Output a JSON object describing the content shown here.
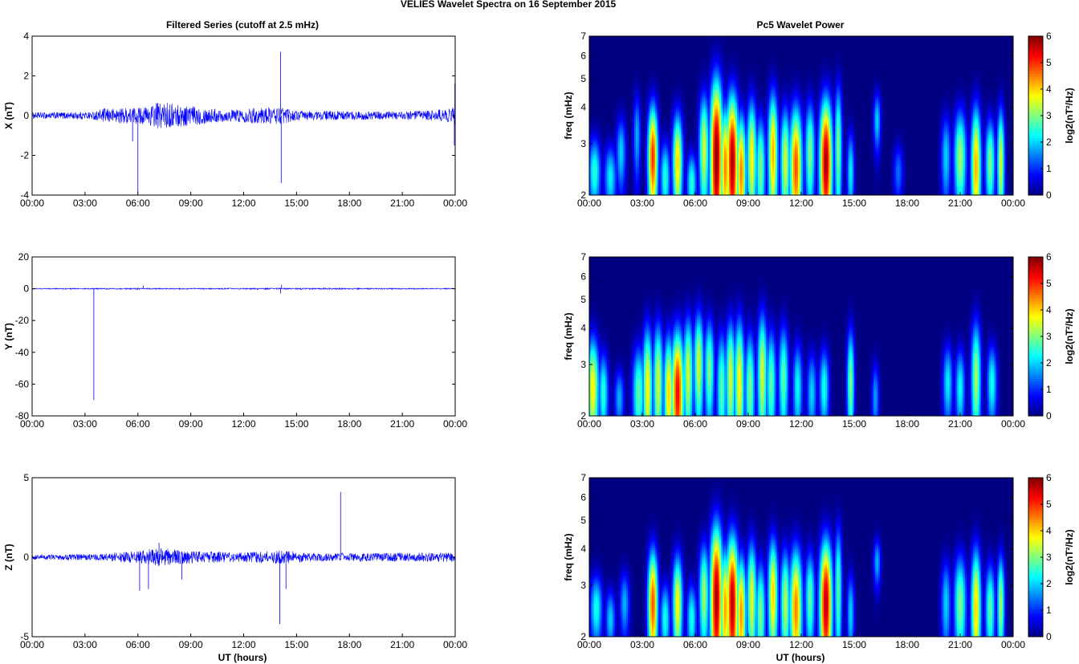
{
  "figure": {
    "title": "VELIES Wavelet Spectra on 16 September 2015",
    "left_title": "Filtered Series (cutoff at 2.5 mHz)",
    "right_title": "Pc5 Wavelet Power",
    "xlabel": "UT (hours)",
    "time_ticks": [
      "00:00",
      "03:00",
      "06:00",
      "09:00",
      "12:00",
      "15:00",
      "18:00",
      "21:00",
      "00:00"
    ],
    "series_color": "#0000ff"
  },
  "chart_data": [
    {
      "type": "line",
      "ylabel": "X (nT)",
      "xlim": [
        0,
        24
      ],
      "ylim": [
        -4,
        4
      ],
      "yticks": [
        -4,
        -2,
        0,
        2,
        4
      ],
      "noise_profile": [
        {
          "x": 0,
          "amp": 0.15
        },
        {
          "x": 3.5,
          "amp": 0.2
        },
        {
          "x": 4,
          "amp": 0.35
        },
        {
          "x": 6.5,
          "amp": 0.45
        },
        {
          "x": 7.2,
          "amp": 0.7
        },
        {
          "x": 9,
          "amp": 0.5
        },
        {
          "x": 11,
          "amp": 0.3
        },
        {
          "x": 14,
          "amp": 0.45
        },
        {
          "x": 15,
          "amp": 0.25
        },
        {
          "x": 21,
          "amp": 0.2
        },
        {
          "x": 23.8,
          "amp": 0.35
        },
        {
          "x": 24,
          "amp": 0.9
        }
      ],
      "spikes": [
        {
          "x": 5.7,
          "y": -1.3
        },
        {
          "x": 6.0,
          "y": -3.9
        },
        {
          "x": 14.1,
          "y": 3.2
        },
        {
          "x": 14.13,
          "y": -3.4
        },
        {
          "x": 23.95,
          "y": -1.5
        },
        {
          "x": 23.98,
          "y": 1.6
        }
      ]
    },
    {
      "type": "line",
      "ylabel": "Y (nT)",
      "xlim": [
        0,
        24
      ],
      "ylim": [
        -80,
        20
      ],
      "yticks": [
        -80,
        -60,
        -40,
        -20,
        0,
        20
      ],
      "noise_profile": [
        {
          "x": 0,
          "amp": 0.3
        },
        {
          "x": 6,
          "amp": 0.4
        },
        {
          "x": 9,
          "amp": 0.35
        },
        {
          "x": 14,
          "amp": 0.45
        },
        {
          "x": 24,
          "amp": 0.3
        }
      ],
      "spikes": [
        {
          "x": 3.5,
          "y": -70
        },
        {
          "x": 6.3,
          "y": 2
        },
        {
          "x": 14.1,
          "y": -3
        },
        {
          "x": 14.15,
          "y": 2.5
        }
      ]
    },
    {
      "type": "line",
      "ylabel": "Z (nT)",
      "xlim": [
        0,
        24
      ],
      "ylim": [
        -5,
        5
      ],
      "yticks": [
        -5,
        0,
        5
      ],
      "noise_profile": [
        {
          "x": 0,
          "amp": 0.15
        },
        {
          "x": 3.5,
          "amp": 0.2
        },
        {
          "x": 5.5,
          "amp": 0.35
        },
        {
          "x": 7.2,
          "amp": 0.6
        },
        {
          "x": 9,
          "amp": 0.4
        },
        {
          "x": 12,
          "amp": 0.3
        },
        {
          "x": 14,
          "amp": 0.45
        },
        {
          "x": 16,
          "amp": 0.25
        },
        {
          "x": 24,
          "amp": 0.3
        }
      ],
      "spikes": [
        {
          "x": 6.1,
          "y": -2.1
        },
        {
          "x": 6.6,
          "y": -2.0
        },
        {
          "x": 7.2,
          "y": 0.9
        },
        {
          "x": 8.5,
          "y": -1.4
        },
        {
          "x": 14.05,
          "y": -4.2
        },
        {
          "x": 14.4,
          "y": -2.0
        },
        {
          "x": 17.5,
          "y": 4.1
        },
        {
          "x": 24.0,
          "y": -0.9
        }
      ]
    },
    {
      "type": "heatmap",
      "ylabel": "freq (mHz)",
      "colorbar_label": "log2(nT²/Hz)",
      "xlim": [
        0,
        24
      ],
      "ylim": [
        2,
        7
      ],
      "yticks": [
        2,
        3,
        4,
        5,
        6,
        7
      ],
      "yscale": "log",
      "clim": [
        0,
        6
      ],
      "colorbar_ticks": [
        0,
        1,
        2,
        3,
        4,
        5,
        6
      ],
      "blobs": [
        {
          "t": 0.3,
          "f": 2.4,
          "p": 2.5,
          "w": 0.25,
          "h": 0.5
        },
        {
          "t": 1.2,
          "f": 2.3,
          "p": 2.2,
          "w": 0.25,
          "h": 0.45
        },
        {
          "t": 1.8,
          "f": 2.8,
          "p": 2.0,
          "w": 0.2,
          "h": 0.6
        },
        {
          "t": 2.7,
          "f": 3.2,
          "p": 1.8,
          "w": 0.15,
          "h": 0.8
        },
        {
          "t": 3.6,
          "f": 2.7,
          "p": 5.0,
          "w": 0.2,
          "h": 0.9
        },
        {
          "t": 4.3,
          "f": 2.3,
          "p": 2.5,
          "w": 0.2,
          "h": 0.5
        },
        {
          "t": 5.0,
          "f": 2.6,
          "p": 4.0,
          "w": 0.2,
          "h": 0.8
        },
        {
          "t": 5.8,
          "f": 2.2,
          "p": 2.5,
          "w": 0.2,
          "h": 0.4
        },
        {
          "t": 6.5,
          "f": 2.9,
          "p": 3.5,
          "w": 0.2,
          "h": 1.0
        },
        {
          "t": 7.2,
          "f": 2.7,
          "p": 6.0,
          "w": 0.25,
          "h": 1.5
        },
        {
          "t": 7.7,
          "f": 2.5,
          "p": 4.5,
          "w": 0.2,
          "h": 1.0
        },
        {
          "t": 8.1,
          "f": 2.6,
          "p": 5.8,
          "w": 0.25,
          "h": 1.2
        },
        {
          "t": 8.6,
          "f": 2.4,
          "p": 4.5,
          "w": 0.2,
          "h": 0.9
        },
        {
          "t": 9.2,
          "f": 2.7,
          "p": 3.8,
          "w": 0.2,
          "h": 1.0
        },
        {
          "t": 9.7,
          "f": 2.5,
          "p": 3.0,
          "w": 0.2,
          "h": 0.8
        },
        {
          "t": 10.4,
          "f": 2.8,
          "p": 4.2,
          "w": 0.2,
          "h": 1.1
        },
        {
          "t": 11.1,
          "f": 2.6,
          "p": 3.5,
          "w": 0.2,
          "h": 0.9
        },
        {
          "t": 11.7,
          "f": 2.5,
          "p": 4.8,
          "w": 0.25,
          "h": 1.0
        },
        {
          "t": 12.5,
          "f": 2.8,
          "p": 3.0,
          "w": 0.2,
          "h": 0.9
        },
        {
          "t": 13.4,
          "f": 2.6,
          "p": 5.8,
          "w": 0.25,
          "h": 1.1
        },
        {
          "t": 14.1,
          "f": 2.9,
          "p": 3.0,
          "w": 0.15,
          "h": 1.2
        },
        {
          "t": 14.8,
          "f": 2.4,
          "p": 2.2,
          "w": 0.15,
          "h": 0.6
        },
        {
          "t": 16.3,
          "f": 3.6,
          "p": 2.0,
          "w": 0.15,
          "h": 0.6
        },
        {
          "t": 17.5,
          "f": 2.4,
          "p": 1.4,
          "w": 0.2,
          "h": 0.4
        },
        {
          "t": 20.2,
          "f": 2.7,
          "p": 2.0,
          "w": 0.2,
          "h": 0.7
        },
        {
          "t": 21.0,
          "f": 2.7,
          "p": 3.2,
          "w": 0.25,
          "h": 0.8
        },
        {
          "t": 21.9,
          "f": 2.5,
          "p": 4.2,
          "w": 0.2,
          "h": 1.0
        },
        {
          "t": 22.7,
          "f": 2.6,
          "p": 3.0,
          "w": 0.2,
          "h": 0.7
        },
        {
          "t": 23.3,
          "f": 2.6,
          "p": 3.5,
          "w": 0.15,
          "h": 0.9
        }
      ]
    },
    {
      "type": "heatmap",
      "ylabel": "freq (mHz)",
      "colorbar_label": "log2(nT²/Hz)",
      "xlim": [
        0,
        24
      ],
      "ylim": [
        2,
        7
      ],
      "yticks": [
        2,
        3,
        4,
        5,
        6,
        7
      ],
      "yscale": "log",
      "clim": [
        0,
        6
      ],
      "colorbar_ticks": [
        0,
        1,
        2,
        3,
        4,
        5,
        6
      ],
      "blobs": [
        {
          "t": 0.2,
          "f": 2.5,
          "p": 3.8,
          "w": 0.25,
          "h": 0.8
        },
        {
          "t": 0.8,
          "f": 2.4,
          "p": 2.5,
          "w": 0.2,
          "h": 0.6
        },
        {
          "t": 1.7,
          "f": 2.3,
          "p": 1.8,
          "w": 0.2,
          "h": 0.4
        },
        {
          "t": 2.8,
          "f": 2.4,
          "p": 2.8,
          "w": 0.25,
          "h": 0.7
        },
        {
          "t": 3.3,
          "f": 2.5,
          "p": 3.8,
          "w": 0.2,
          "h": 1.0
        },
        {
          "t": 3.9,
          "f": 2.6,
          "p": 3.5,
          "w": 0.2,
          "h": 1.0
        },
        {
          "t": 4.5,
          "f": 2.4,
          "p": 4.0,
          "w": 0.2,
          "h": 0.9
        },
        {
          "t": 5.0,
          "f": 2.4,
          "p": 5.3,
          "w": 0.25,
          "h": 1.0
        },
        {
          "t": 5.6,
          "f": 2.8,
          "p": 3.5,
          "w": 0.2,
          "h": 1.0
        },
        {
          "t": 6.2,
          "f": 3.0,
          "p": 3.5,
          "w": 0.2,
          "h": 1.0
        },
        {
          "t": 6.8,
          "f": 2.9,
          "p": 3.0,
          "w": 0.2,
          "h": 0.9
        },
        {
          "t": 7.5,
          "f": 2.5,
          "p": 2.8,
          "w": 0.2,
          "h": 0.9
        },
        {
          "t": 8.0,
          "f": 2.7,
          "p": 3.5,
          "w": 0.2,
          "h": 1.0
        },
        {
          "t": 8.5,
          "f": 2.6,
          "p": 3.8,
          "w": 0.2,
          "h": 1.1
        },
        {
          "t": 9.1,
          "f": 2.5,
          "p": 3.0,
          "w": 0.2,
          "h": 0.9
        },
        {
          "t": 9.8,
          "f": 2.8,
          "p": 3.5,
          "w": 0.2,
          "h": 1.1
        },
        {
          "t": 10.3,
          "f": 2.6,
          "p": 2.8,
          "w": 0.2,
          "h": 0.9
        },
        {
          "t": 11.0,
          "f": 2.7,
          "p": 2.8,
          "w": 0.2,
          "h": 0.9
        },
        {
          "t": 11.8,
          "f": 2.5,
          "p": 2.3,
          "w": 0.2,
          "h": 0.7
        },
        {
          "t": 12.6,
          "f": 2.4,
          "p": 2.0,
          "w": 0.2,
          "h": 0.6
        },
        {
          "t": 13.3,
          "f": 2.5,
          "p": 2.4,
          "w": 0.2,
          "h": 0.6
        },
        {
          "t": 14.8,
          "f": 2.6,
          "p": 3.0,
          "w": 0.15,
          "h": 0.9
        },
        {
          "t": 16.2,
          "f": 2.3,
          "p": 1.7,
          "w": 0.15,
          "h": 0.5
        },
        {
          "t": 20.3,
          "f": 2.6,
          "p": 2.2,
          "w": 0.2,
          "h": 0.6
        },
        {
          "t": 21.0,
          "f": 2.5,
          "p": 2.3,
          "w": 0.2,
          "h": 0.6
        },
        {
          "t": 21.9,
          "f": 2.7,
          "p": 3.2,
          "w": 0.2,
          "h": 1.0
        },
        {
          "t": 22.8,
          "f": 2.6,
          "p": 2.4,
          "w": 0.2,
          "h": 0.6
        }
      ]
    },
    {
      "type": "heatmap",
      "ylabel": "freq (mHz)",
      "colorbar_label": "log2(nT²/Hz)",
      "xlim": [
        0,
        24
      ],
      "ylim": [
        2,
        7
      ],
      "yticks": [
        2,
        3,
        4,
        5,
        6,
        7
      ],
      "yscale": "log",
      "clim": [
        0,
        6
      ],
      "colorbar_ticks": [
        0,
        1,
        2,
        3,
        4,
        5,
        6
      ],
      "blobs": [
        {
          "t": 0.4,
          "f": 2.5,
          "p": 2.4,
          "w": 0.25,
          "h": 0.5
        },
        {
          "t": 1.2,
          "f": 2.3,
          "p": 2.0,
          "w": 0.2,
          "h": 0.4
        },
        {
          "t": 2.0,
          "f": 2.6,
          "p": 1.8,
          "w": 0.2,
          "h": 0.5
        },
        {
          "t": 3.6,
          "f": 2.6,
          "p": 4.8,
          "w": 0.2,
          "h": 0.9
        },
        {
          "t": 4.3,
          "f": 2.3,
          "p": 2.4,
          "w": 0.2,
          "h": 0.5
        },
        {
          "t": 5.0,
          "f": 2.6,
          "p": 3.8,
          "w": 0.2,
          "h": 0.8
        },
        {
          "t": 5.8,
          "f": 2.3,
          "p": 2.4,
          "w": 0.2,
          "h": 0.5
        },
        {
          "t": 6.5,
          "f": 2.8,
          "p": 3.2,
          "w": 0.2,
          "h": 0.9
        },
        {
          "t": 7.2,
          "f": 2.7,
          "p": 5.8,
          "w": 0.25,
          "h": 1.4
        },
        {
          "t": 7.7,
          "f": 2.5,
          "p": 4.3,
          "w": 0.2,
          "h": 1.0
        },
        {
          "t": 8.1,
          "f": 2.6,
          "p": 5.7,
          "w": 0.25,
          "h": 1.2
        },
        {
          "t": 8.6,
          "f": 2.4,
          "p": 4.4,
          "w": 0.2,
          "h": 0.9
        },
        {
          "t": 9.2,
          "f": 2.7,
          "p": 3.6,
          "w": 0.2,
          "h": 1.0
        },
        {
          "t": 9.7,
          "f": 2.4,
          "p": 3.0,
          "w": 0.2,
          "h": 0.8
        },
        {
          "t": 10.4,
          "f": 2.8,
          "p": 4.0,
          "w": 0.2,
          "h": 1.0
        },
        {
          "t": 11.1,
          "f": 2.6,
          "p": 3.3,
          "w": 0.2,
          "h": 0.9
        },
        {
          "t": 11.7,
          "f": 2.5,
          "p": 4.5,
          "w": 0.25,
          "h": 1.0
        },
        {
          "t": 12.5,
          "f": 2.7,
          "p": 2.8,
          "w": 0.2,
          "h": 0.8
        },
        {
          "t": 13.4,
          "f": 2.6,
          "p": 5.7,
          "w": 0.25,
          "h": 1.1
        },
        {
          "t": 14.1,
          "f": 2.9,
          "p": 2.8,
          "w": 0.15,
          "h": 1.2
        },
        {
          "t": 14.8,
          "f": 2.4,
          "p": 2.0,
          "w": 0.15,
          "h": 0.6
        },
        {
          "t": 16.3,
          "f": 3.6,
          "p": 1.8,
          "w": 0.15,
          "h": 0.5
        },
        {
          "t": 20.2,
          "f": 2.6,
          "p": 2.0,
          "w": 0.2,
          "h": 0.7
        },
        {
          "t": 21.0,
          "f": 2.6,
          "p": 3.0,
          "w": 0.25,
          "h": 0.8
        },
        {
          "t": 21.9,
          "f": 2.5,
          "p": 4.0,
          "w": 0.2,
          "h": 1.0
        },
        {
          "t": 22.7,
          "f": 2.5,
          "p": 2.8,
          "w": 0.2,
          "h": 0.7
        },
        {
          "t": 23.3,
          "f": 2.6,
          "p": 3.2,
          "w": 0.15,
          "h": 0.8
        }
      ]
    }
  ]
}
